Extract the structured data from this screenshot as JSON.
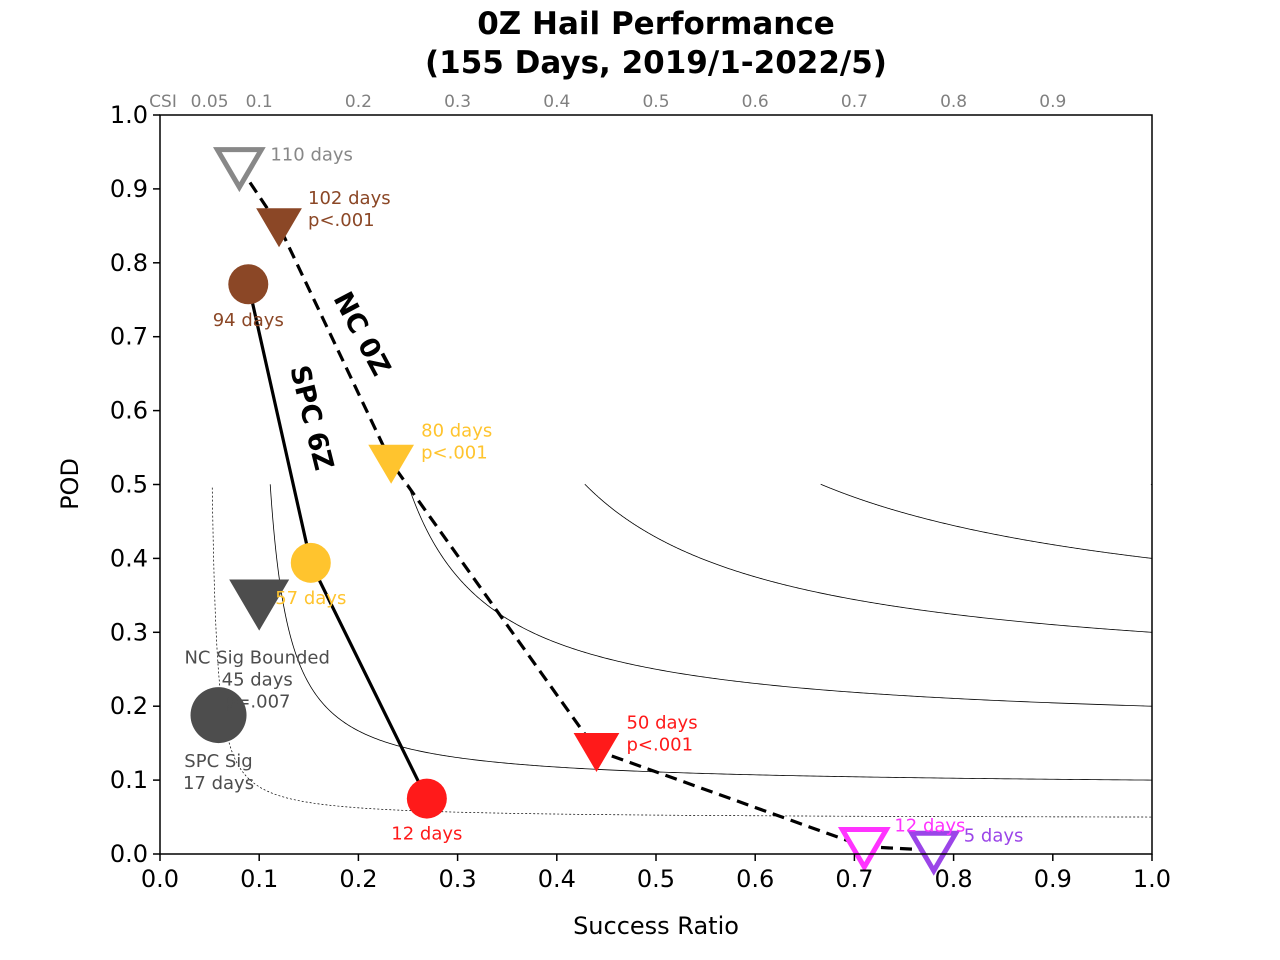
{
  "chart_data": {
    "type": "scatter",
    "title_line1": "0Z Hail Performance",
    "title_line2": "(155 Days, 2019/1-2022/5)",
    "xlabel": "Success Ratio",
    "ylabel": "POD",
    "xlim": [
      0,
      1
    ],
    "ylim": [
      0,
      1
    ],
    "x_ticks": [
      "0.0",
      "0.1",
      "0.2",
      "0.3",
      "0.4",
      "0.5",
      "0.6",
      "0.7",
      "0.8",
      "0.9",
      "1.0"
    ],
    "y_ticks": [
      "0.0",
      "0.1",
      "0.2",
      "0.3",
      "0.4",
      "0.5",
      "0.6",
      "0.7",
      "0.8",
      "0.9",
      "1.0"
    ],
    "csi_prefix": "CSI",
    "csi_values": [
      0.05,
      0.1,
      0.2,
      0.3,
      0.4,
      0.5,
      0.6,
      0.7,
      0.8,
      0.9
    ],
    "csi_labels": [
      "0.05",
      "0.1",
      "0.2",
      "0.3",
      "0.4",
      "0.5",
      "0.6",
      "0.7",
      "0.8",
      "0.9"
    ],
    "csi_color": "#808080",
    "nc_line_label": "NC 0Z",
    "spc_line_label": "SPC 6Z",
    "nc_0z": [
      {
        "sr": 0.08,
        "pod": 0.93,
        "color": "#888888",
        "filled": false,
        "labels": [
          "110 days"
        ]
      },
      {
        "sr": 0.12,
        "pod": 0.85,
        "color": "#8B4726",
        "filled": true,
        "labels": [
          "102 days",
          "p<.001"
        ]
      },
      {
        "sr": 0.233,
        "pod": 0.53,
        "color": "#FFC42E",
        "filled": true,
        "labels": [
          "80 days",
          "p<.001"
        ]
      },
      {
        "sr": 0.44,
        "pod": 0.14,
        "color": "#FF1A1A",
        "filled": true,
        "labels": [
          "50 days",
          "p<.001"
        ]
      },
      {
        "sr": 0.71,
        "pod": 0.01,
        "color": "#FF33FF",
        "filled": false,
        "labels": [
          "12 days"
        ]
      },
      {
        "sr": 0.78,
        "pod": 0.005,
        "color": "#9B45E8",
        "filled": false,
        "labels": [
          "5 days"
        ]
      }
    ],
    "spc_6z": [
      {
        "sr": 0.089,
        "pod": 0.771,
        "color": "#8B4726",
        "labels": [
          "94 days"
        ]
      },
      {
        "sr": 0.152,
        "pod": 0.394,
        "color": "#FFC42E",
        "labels": [
          "57 days"
        ]
      },
      {
        "sr": 0.269,
        "pod": 0.075,
        "color": "#FF1A1A",
        "labels": [
          "12 days"
        ]
      }
    ],
    "sig_points": [
      {
        "name": "NC Sig Bounded",
        "marker": "triangle",
        "sr": 0.1,
        "pod": 0.34,
        "color": "#4D4D4D",
        "labels": [
          "NC Sig Bounded",
          "45 days",
          "p=.007"
        ]
      },
      {
        "name": "SPC Sig",
        "marker": "circle",
        "sr": 0.059,
        "pod": 0.188,
        "color": "#4D4D4D",
        "labels": [
          "SPC Sig",
          "17 days"
        ]
      }
    ]
  }
}
